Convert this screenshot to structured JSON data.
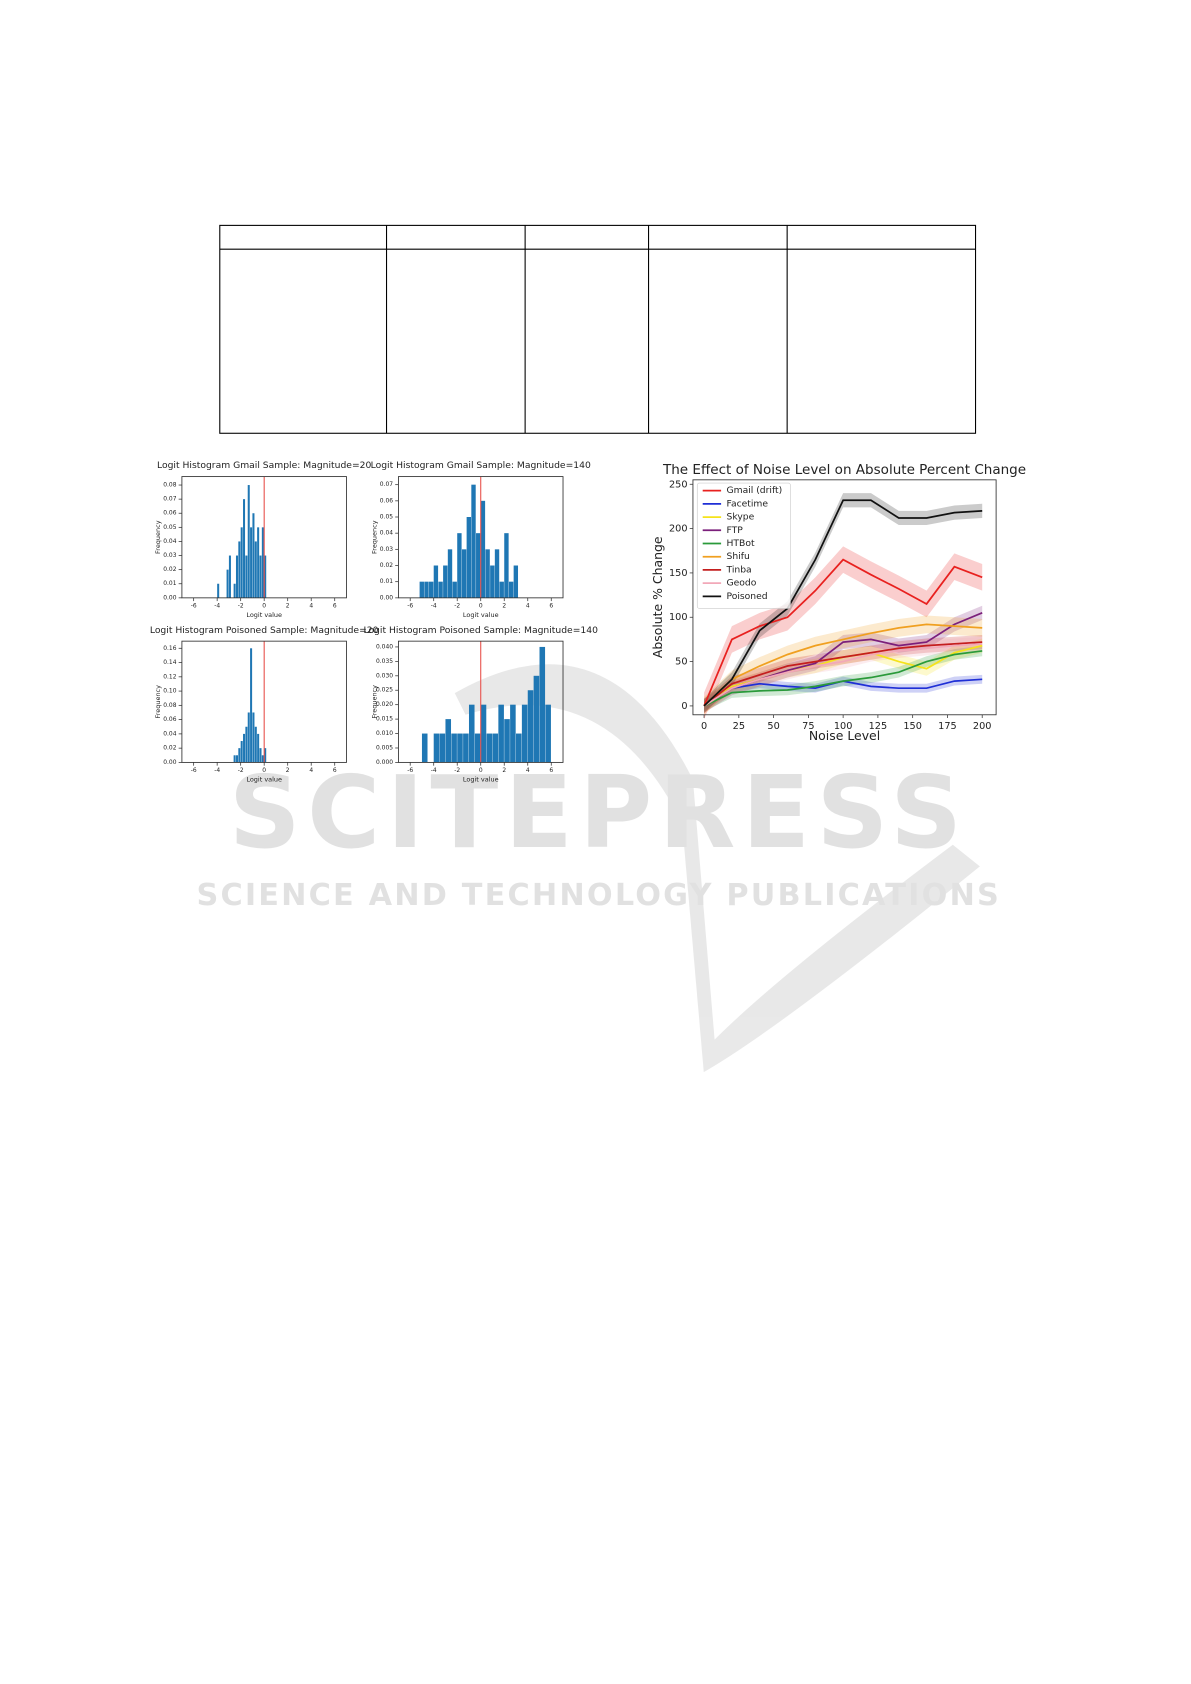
{
  "watermark": {
    "logo": "SCITEPRESS",
    "tagline": "SCIENCE AND TECHNOLOGY PUBLICATIONS"
  },
  "chart_data": [
    {
      "type": "histogram",
      "title": "Logit Histogram Gmail Sample: Magnitude=20",
      "xlabel": "Logit value",
      "ylabel": "Frequency",
      "bins": [
        -4.0,
        -3.8,
        -3.6,
        -3.4,
        -3.2,
        -3.0,
        -2.8,
        -2.6,
        -2.4,
        -2.2,
        -2.0,
        -1.8,
        -1.6,
        -1.4,
        -1.2,
        -1.0,
        -0.8,
        -0.6,
        -0.4,
        -0.2,
        0.0,
        0.2,
        0.4
      ],
      "counts": [
        0.01,
        0,
        0,
        0,
        0.02,
        0.03,
        0,
        0.01,
        0.03,
        0.04,
        0.05,
        0.07,
        0.03,
        0.08,
        0.05,
        0.06,
        0.04,
        0.05,
        0.03,
        0.05,
        0.03,
        0
      ],
      "xlim": [
        -7,
        7
      ],
      "xticks": [
        -6,
        -4,
        -2,
        0,
        2,
        4,
        6
      ],
      "ylim": [
        0,
        0.086
      ],
      "yticks": [
        {
          "value": 0,
          "label": "0.00"
        },
        {
          "value": 0.01,
          "label": "0.01"
        },
        {
          "value": 0.02,
          "label": "0.02"
        },
        {
          "value": 0.03,
          "label": "0.03"
        },
        {
          "value": 0.04,
          "label": "0.04"
        },
        {
          "value": 0.05,
          "label": "0.05"
        },
        {
          "value": 0.06,
          "label": "0.06"
        },
        {
          "value": 0.07,
          "label": "0.07"
        },
        {
          "value": 0.08,
          "label": "0.08"
        }
      ],
      "color": "#1f77b4",
      "threshold": 0,
      "threshold_color": "#e8504a"
    },
    {
      "type": "histogram",
      "title": "Logit Histogram Gmail Sample: Magnitude=140",
      "xlabel": "Logit value",
      "ylabel": "Frequency",
      "bins": [
        -5.2,
        -4.8,
        -4.4,
        -4.0,
        -3.6,
        -3.2,
        -2.8,
        -2.4,
        -2.0,
        -1.6,
        -1.2,
        -0.8,
        -0.4,
        0.0,
        0.4,
        0.8,
        1.2,
        1.6,
        2.0,
        2.4,
        2.8,
        3.2
      ],
      "counts": [
        0.01,
        0.01,
        0.01,
        0.02,
        0.01,
        0.02,
        0.03,
        0.01,
        0.04,
        0.03,
        0.05,
        0.07,
        0.04,
        0.06,
        0.03,
        0.02,
        0.03,
        0.01,
        0.04,
        0.01,
        0.02
      ],
      "xlim": [
        -7,
        7
      ],
      "xticks": [
        -6,
        -4,
        -2,
        0,
        2,
        4,
        6
      ],
      "ylim": [
        0,
        0.075
      ],
      "yticks": [
        {
          "value": 0,
          "label": "0.00"
        },
        {
          "value": 0.01,
          "label": "0.01"
        },
        {
          "value": 0.02,
          "label": "0.02"
        },
        {
          "value": 0.03,
          "label": "0.03"
        },
        {
          "value": 0.04,
          "label": "0.04"
        },
        {
          "value": 0.05,
          "label": "0.05"
        },
        {
          "value": 0.06,
          "label": "0.06"
        },
        {
          "value": 0.07,
          "label": "0.07"
        }
      ],
      "color": "#1f77b4",
      "threshold": 0,
      "threshold_color": "#e8504a"
    },
    {
      "type": "histogram",
      "title": "Logit Histogram Poisoned Sample: Magnitude=20",
      "xlabel": "Logit value",
      "ylabel": "Frequency",
      "bins": [
        -2.6,
        -2.4,
        -2.2,
        -2.0,
        -1.8,
        -1.6,
        -1.4,
        -1.2,
        -1.0,
        -0.8,
        -0.6,
        -0.4,
        -0.2,
        0.0,
        0.2
      ],
      "counts": [
        0.01,
        0.01,
        0.02,
        0.03,
        0.04,
        0.05,
        0.07,
        0.16,
        0.07,
        0.05,
        0.04,
        0.02,
        0.01,
        0.02
      ],
      "xlim": [
        -7,
        7
      ],
      "xticks": [
        -6,
        -4,
        -2,
        0,
        2,
        4,
        6
      ],
      "ylim": [
        0,
        0.17
      ],
      "yticks": [
        {
          "value": 0,
          "label": "0.00"
        },
        {
          "value": 0.02,
          "label": "0.02"
        },
        {
          "value": 0.04,
          "label": "0.04"
        },
        {
          "value": 0.06,
          "label": "0.06"
        },
        {
          "value": 0.08,
          "label": "0.08"
        },
        {
          "value": 0.1,
          "label": "0.10"
        },
        {
          "value": 0.12,
          "label": "0.12"
        },
        {
          "value": 0.14,
          "label": "0.14"
        },
        {
          "value": 0.16,
          "label": "0.16"
        }
      ],
      "color": "#1f77b4",
      "threshold": 0,
      "threshold_color": "#e8504a"
    },
    {
      "type": "histogram",
      "title": "Logit Histogram Poisoned Sample: Magnitude=140",
      "xlabel": "Logit value",
      "ylabel": "Frequency",
      "bins": [
        -5.0,
        -4.5,
        -4.0,
        -3.5,
        -3.0,
        -2.5,
        -2.0,
        -1.5,
        -1.0,
        -0.5,
        0.0,
        0.5,
        1.0,
        1.5,
        2.0,
        2.5,
        3.0,
        3.5,
        4.0,
        4.5,
        5.0,
        5.5,
        6.0
      ],
      "counts": [
        0.01,
        0,
        0.01,
        0.01,
        0.015,
        0.01,
        0.01,
        0.01,
        0.02,
        0.01,
        0.02,
        0.01,
        0.01,
        0.02,
        0.015,
        0.02,
        0.01,
        0.02,
        0.025,
        0.03,
        0.04,
        0.02
      ],
      "xlim": [
        -7,
        7
      ],
      "xticks": [
        -6,
        -4,
        -2,
        0,
        2,
        4,
        6
      ],
      "ylim": [
        0,
        0.042
      ],
      "yticks": [
        {
          "value": 0,
          "label": "0.000"
        },
        {
          "value": 0.005,
          "label": "0.005"
        },
        {
          "value": 0.01,
          "label": "0.010"
        },
        {
          "value": 0.015,
          "label": "0.015"
        },
        {
          "value": 0.02,
          "label": "0.020"
        },
        {
          "value": 0.025,
          "label": "0.025"
        },
        {
          "value": 0.03,
          "label": "0.030"
        },
        {
          "value": 0.035,
          "label": "0.035"
        },
        {
          "value": 0.04,
          "label": "0.040"
        }
      ],
      "color": "#1f77b4",
      "threshold": 0,
      "threshold_color": "#e8504a"
    },
    {
      "type": "line",
      "title": "The Effect of Noise Level on Absolute Percent Change",
      "xlabel": "Noise Level",
      "ylabel": "Absolute % Change",
      "x": [
        0,
        20,
        40,
        60,
        80,
        100,
        120,
        140,
        160,
        180,
        200
      ],
      "xlim": [
        -8,
        210
      ],
      "xticks": [
        0,
        25,
        50,
        75,
        100,
        125,
        150,
        175,
        200
      ],
      "ylim": [
        -10,
        255
      ],
      "yticks": [
        0,
        50,
        100,
        150,
        200,
        250
      ],
      "legend": "upper left",
      "series": [
        {
          "name": "Gmail (drift)",
          "color": "#e8211f",
          "values": [
            0,
            75,
            90,
            100,
            130,
            165,
            148,
            132,
            115,
            157,
            145
          ],
          "error": 15
        },
        {
          "name": "Facetime",
          "color": "#1f2fd6",
          "values": [
            0,
            20,
            25,
            22,
            20,
            28,
            22,
            20,
            20,
            28,
            30
          ],
          "error": 5
        },
        {
          "name": "Skype",
          "color": "#f5e31a",
          "values": [
            0,
            22,
            30,
            40,
            45,
            55,
            60,
            50,
            42,
            60,
            68
          ],
          "error": 8
        },
        {
          "name": "FTP",
          "color": "#7b1f7b",
          "values": [
            0,
            20,
            30,
            40,
            48,
            72,
            75,
            68,
            72,
            92,
            105
          ],
          "error": 8
        },
        {
          "name": "HTBot",
          "color": "#2a9a3a",
          "values": [
            0,
            15,
            17,
            18,
            22,
            28,
            32,
            38,
            50,
            58,
            62
          ],
          "error": 6
        },
        {
          "name": "Shifu",
          "color": "#f0a020",
          "values": [
            0,
            30,
            45,
            58,
            68,
            75,
            82,
            88,
            92,
            90,
            88
          ],
          "error": 10
        },
        {
          "name": "Tinba",
          "color": "#c41e1e",
          "values": [
            0,
            25,
            35,
            45,
            50,
            55,
            60,
            65,
            68,
            70,
            72
          ],
          "error": 8
        },
        {
          "name": "Geodo",
          "color": "#f2a8b8",
          "values": [
            0,
            20,
            30,
            38,
            45,
            50,
            58,
            62,
            65,
            68,
            70
          ],
          "error": 8
        },
        {
          "name": "Poisoned",
          "color": "#111111",
          "values": [
            0,
            30,
            85,
            110,
            165,
            232,
            232,
            212,
            212,
            218,
            220
          ],
          "error": 8
        }
      ]
    }
  ]
}
